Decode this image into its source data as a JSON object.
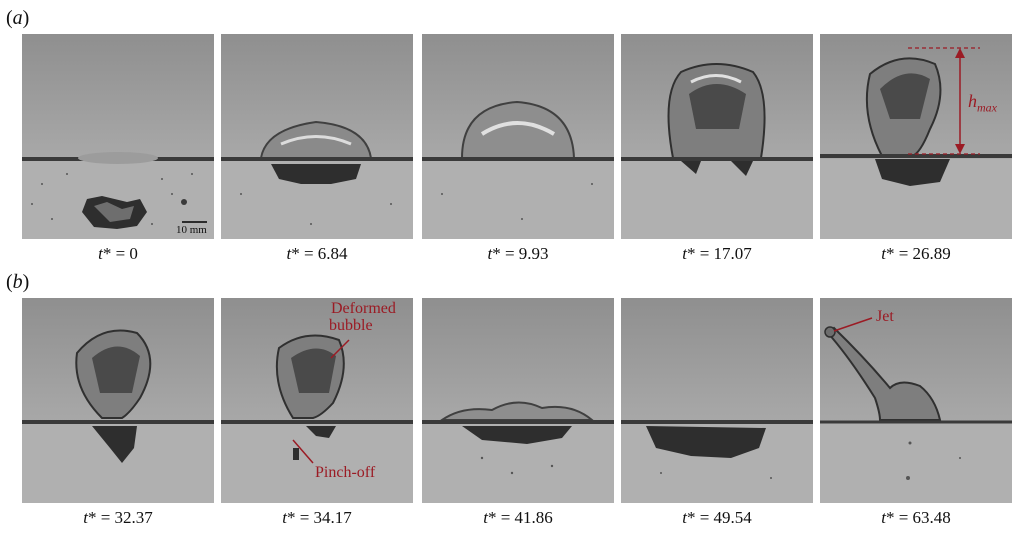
{
  "panels": [
    {
      "label": "a",
      "frames": [
        {
          "time": "0",
          "scale_bar": "10 mm"
        },
        {
          "time": "6.84"
        },
        {
          "time": "9.93"
        },
        {
          "time": "17.07"
        },
        {
          "time": "26.89",
          "annotation": "h",
          "annotation_sub": "max"
        }
      ]
    },
    {
      "label": "b",
      "frames": [
        {
          "time": "32.37"
        },
        {
          "time": "34.17",
          "annotation_top_line1": "Deformed",
          "annotation_top_line2": "bubble",
          "annotation_bottom": "Pinch-off"
        },
        {
          "time": "41.86"
        },
        {
          "time": "49.54"
        },
        {
          "time": "63.48",
          "annotation": "Jet"
        }
      ]
    }
  ],
  "caption_prefix": "t",
  "caption_suffix": "* = ",
  "colors": {
    "annotation": "#9b1b24",
    "water_line": "#3a3a3a"
  }
}
